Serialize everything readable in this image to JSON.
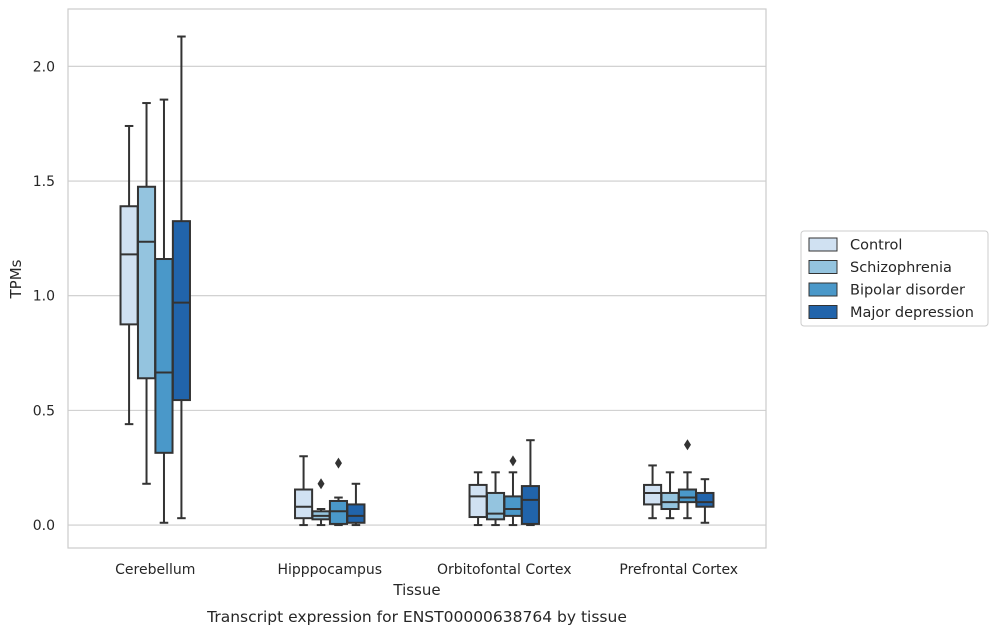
{
  "chart_data": {
    "type": "box",
    "xlabel": "Tissue",
    "ylabel": "TPMs",
    "caption": "Transcript expression for ENST00000638764 by tissue",
    "ylim": [
      -0.1,
      2.25
    ],
    "yticks": [
      "0.0",
      "0.5",
      "1.0",
      "1.5",
      "2.0"
    ],
    "ytick_values": [
      0.0,
      0.5,
      1.0,
      1.5,
      2.0
    ],
    "grid": "horizontal",
    "legend_position": "right",
    "categories": [
      "Cerebellum",
      "Hipppocampus",
      "Orbitofontal Cortex",
      "Prefrontal Cortex"
    ],
    "series": [
      {
        "name": "Control",
        "color": "#d0e1f2",
        "boxes": [
          {
            "whislo": 0.44,
            "q1": 0.875,
            "med": 1.18,
            "q3": 1.39,
            "whishi": 1.74,
            "fliers": []
          },
          {
            "whislo": 0.0,
            "q1": 0.03,
            "med": 0.08,
            "q3": 0.155,
            "whishi": 0.3,
            "fliers": []
          },
          {
            "whislo": 0.0,
            "q1": 0.035,
            "med": 0.125,
            "q3": 0.175,
            "whishi": 0.23,
            "fliers": []
          },
          {
            "whislo": 0.03,
            "q1": 0.09,
            "med": 0.14,
            "q3": 0.175,
            "whishi": 0.26,
            "fliers": []
          }
        ]
      },
      {
        "name": "Schizophrenia",
        "color": "#94c4df",
        "boxes": [
          {
            "whislo": 0.18,
            "q1": 0.64,
            "med": 1.235,
            "q3": 1.475,
            "whishi": 1.84,
            "fliers": []
          },
          {
            "whislo": 0.0,
            "q1": 0.025,
            "med": 0.04,
            "q3": 0.06,
            "whishi": 0.07,
            "fliers": [
              0.18
            ]
          },
          {
            "whislo": 0.0,
            "q1": 0.025,
            "med": 0.05,
            "q3": 0.14,
            "whishi": 0.23,
            "fliers": []
          },
          {
            "whislo": 0.03,
            "q1": 0.07,
            "med": 0.1,
            "q3": 0.14,
            "whishi": 0.23,
            "fliers": []
          }
        ]
      },
      {
        "name": "Bipolar disorder",
        "color": "#4a98c9",
        "boxes": [
          {
            "whislo": 0.01,
            "q1": 0.315,
            "med": 0.665,
            "q3": 1.16,
            "whishi": 1.855,
            "fliers": []
          },
          {
            "whislo": 0.0,
            "q1": 0.005,
            "med": 0.06,
            "q3": 0.105,
            "whishi": 0.12,
            "fliers": [
              0.27
            ]
          },
          {
            "whislo": 0.0,
            "q1": 0.04,
            "med": 0.07,
            "q3": 0.125,
            "whishi": 0.23,
            "fliers": [
              0.28
            ]
          },
          {
            "whislo": 0.03,
            "q1": 0.1,
            "med": 0.12,
            "q3": 0.155,
            "whishi": 0.23,
            "fliers": [
              0.35
            ]
          }
        ]
      },
      {
        "name": "Major depression",
        "color": "#2164ab",
        "boxes": [
          {
            "whislo": 0.03,
            "q1": 0.545,
            "med": 0.97,
            "q3": 1.325,
            "whishi": 2.13,
            "fliers": []
          },
          {
            "whislo": 0.0,
            "q1": 0.01,
            "med": 0.04,
            "q3": 0.09,
            "whishi": 0.18,
            "fliers": []
          },
          {
            "whislo": 0.0,
            "q1": 0.005,
            "med": 0.11,
            "q3": 0.17,
            "whishi": 0.37,
            "fliers": []
          },
          {
            "whislo": 0.01,
            "q1": 0.08,
            "med": 0.1,
            "q3": 0.14,
            "whishi": 0.2,
            "fliers": []
          }
        ]
      }
    ]
  }
}
